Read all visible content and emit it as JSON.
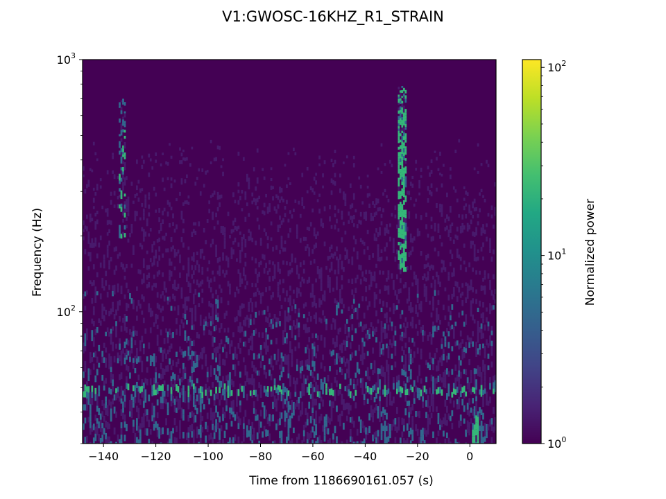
{
  "chart_data": {
    "type": "heatmap",
    "title": "V1:GWOSC-16KHZ_R1_STRAIN",
    "xlabel": "Time from 1186690161.057 (s)",
    "ylabel": "Frequency (Hz)",
    "xlim": [
      -148,
      10
    ],
    "ylim": [
      30,
      1000
    ],
    "yscale": "log",
    "x_ticks": [
      -140,
      -120,
      -100,
      -80,
      -60,
      -40,
      -20,
      0
    ],
    "x_tick_labels": [
      "−140",
      "−120",
      "−100",
      "−80",
      "−60",
      "−40",
      "−20",
      "0"
    ],
    "y_ticks": [
      100,
      1000
    ],
    "y_tick_labels": [
      {
        "base": "10",
        "exp": "2"
      },
      {
        "base": "10",
        "exp": "3"
      }
    ],
    "colorbar": {
      "label": "Normalized power",
      "scale": "log",
      "range": [
        1,
        110
      ],
      "colormap": "viridis",
      "ticks": [
        1,
        10,
        100
      ],
      "tick_labels": [
        {
          "base": "10",
          "exp": "0"
        },
        {
          "base": "10",
          "exp": "1"
        },
        {
          "base": "10",
          "exp": "2"
        }
      ]
    },
    "grid": false,
    "colors": {
      "background": "#440154",
      "low": "#481a6c",
      "mid": "#31688e",
      "high": "#35b779",
      "peak": "#fde725"
    },
    "features": [
      {
        "label": "broadband noise band",
        "freq_range": [
          30,
          60
        ],
        "level": 8
      },
      {
        "label": "line ~50 Hz",
        "freq": 50,
        "level": 20
      },
      {
        "label": "excess power track",
        "time": -26,
        "freq_range": [
          150,
          800
        ],
        "level": 30
      },
      {
        "label": "excess power track",
        "time": -133,
        "freq_range": [
          200,
          700
        ],
        "level": 15
      },
      {
        "label": "late transient",
        "time": 2,
        "freq_range": [
          30,
          40
        ],
        "level": 40
      }
    ]
  }
}
